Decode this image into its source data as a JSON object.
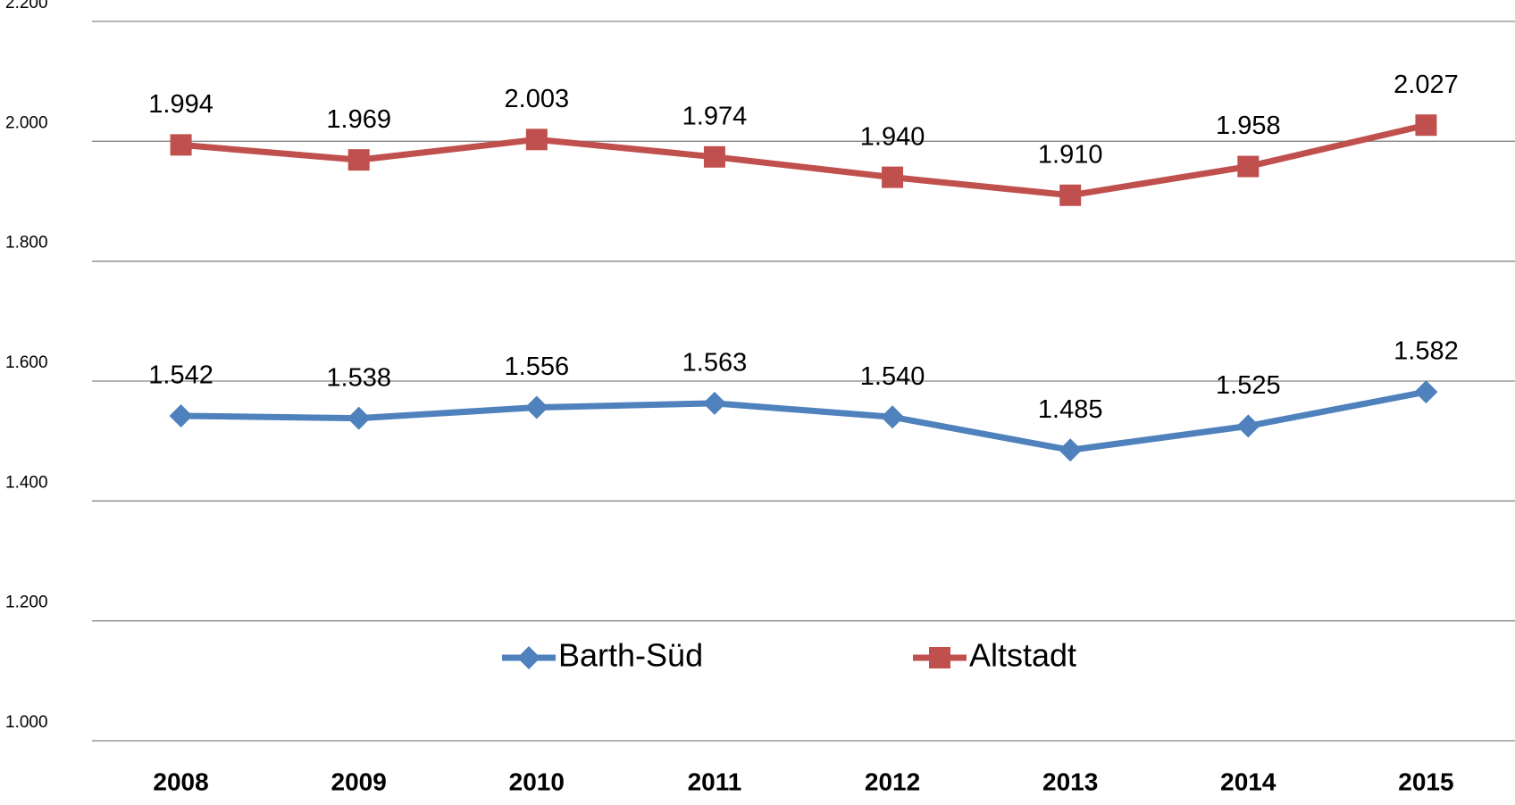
{
  "chart_data": {
    "type": "line",
    "categories": [
      "2008",
      "2009",
      "2010",
      "2011",
      "2012",
      "2013",
      "2014",
      "2015"
    ],
    "series": [
      {
        "name": "Barth-Süd",
        "color": "#4f81bd",
        "marker": "diamond",
        "values": [
          1542,
          1538,
          1556,
          1563,
          1540,
          1485,
          1525,
          1582
        ],
        "value_labels": [
          "1.542",
          "1.538",
          "1.556",
          "1.563",
          "1.540",
          "1.485",
          "1.525",
          "1.582"
        ]
      },
      {
        "name": "Altstadt",
        "color": "#c0504d",
        "marker": "square",
        "values": [
          1994,
          1969,
          2003,
          1974,
          1940,
          1910,
          1958,
          2027
        ],
        "value_labels": [
          "1.994",
          "1.969",
          "2.003",
          "1.974",
          "1.940",
          "1.910",
          "1.958",
          "2.027"
        ]
      }
    ],
    "ylim": [
      1000,
      2200
    ],
    "yticks": [
      {
        "value": 1000,
        "label": "1.000"
      },
      {
        "value": 1200,
        "label": "1.200"
      },
      {
        "value": 1400,
        "label": "1.400"
      },
      {
        "value": 1600,
        "label": "1.600"
      },
      {
        "value": 1800,
        "label": "1.800"
      },
      {
        "value": 2000,
        "label": "2.000"
      },
      {
        "value": 2200,
        "label": "2.200"
      }
    ],
    "grid": true,
    "legend": "bottom"
  }
}
